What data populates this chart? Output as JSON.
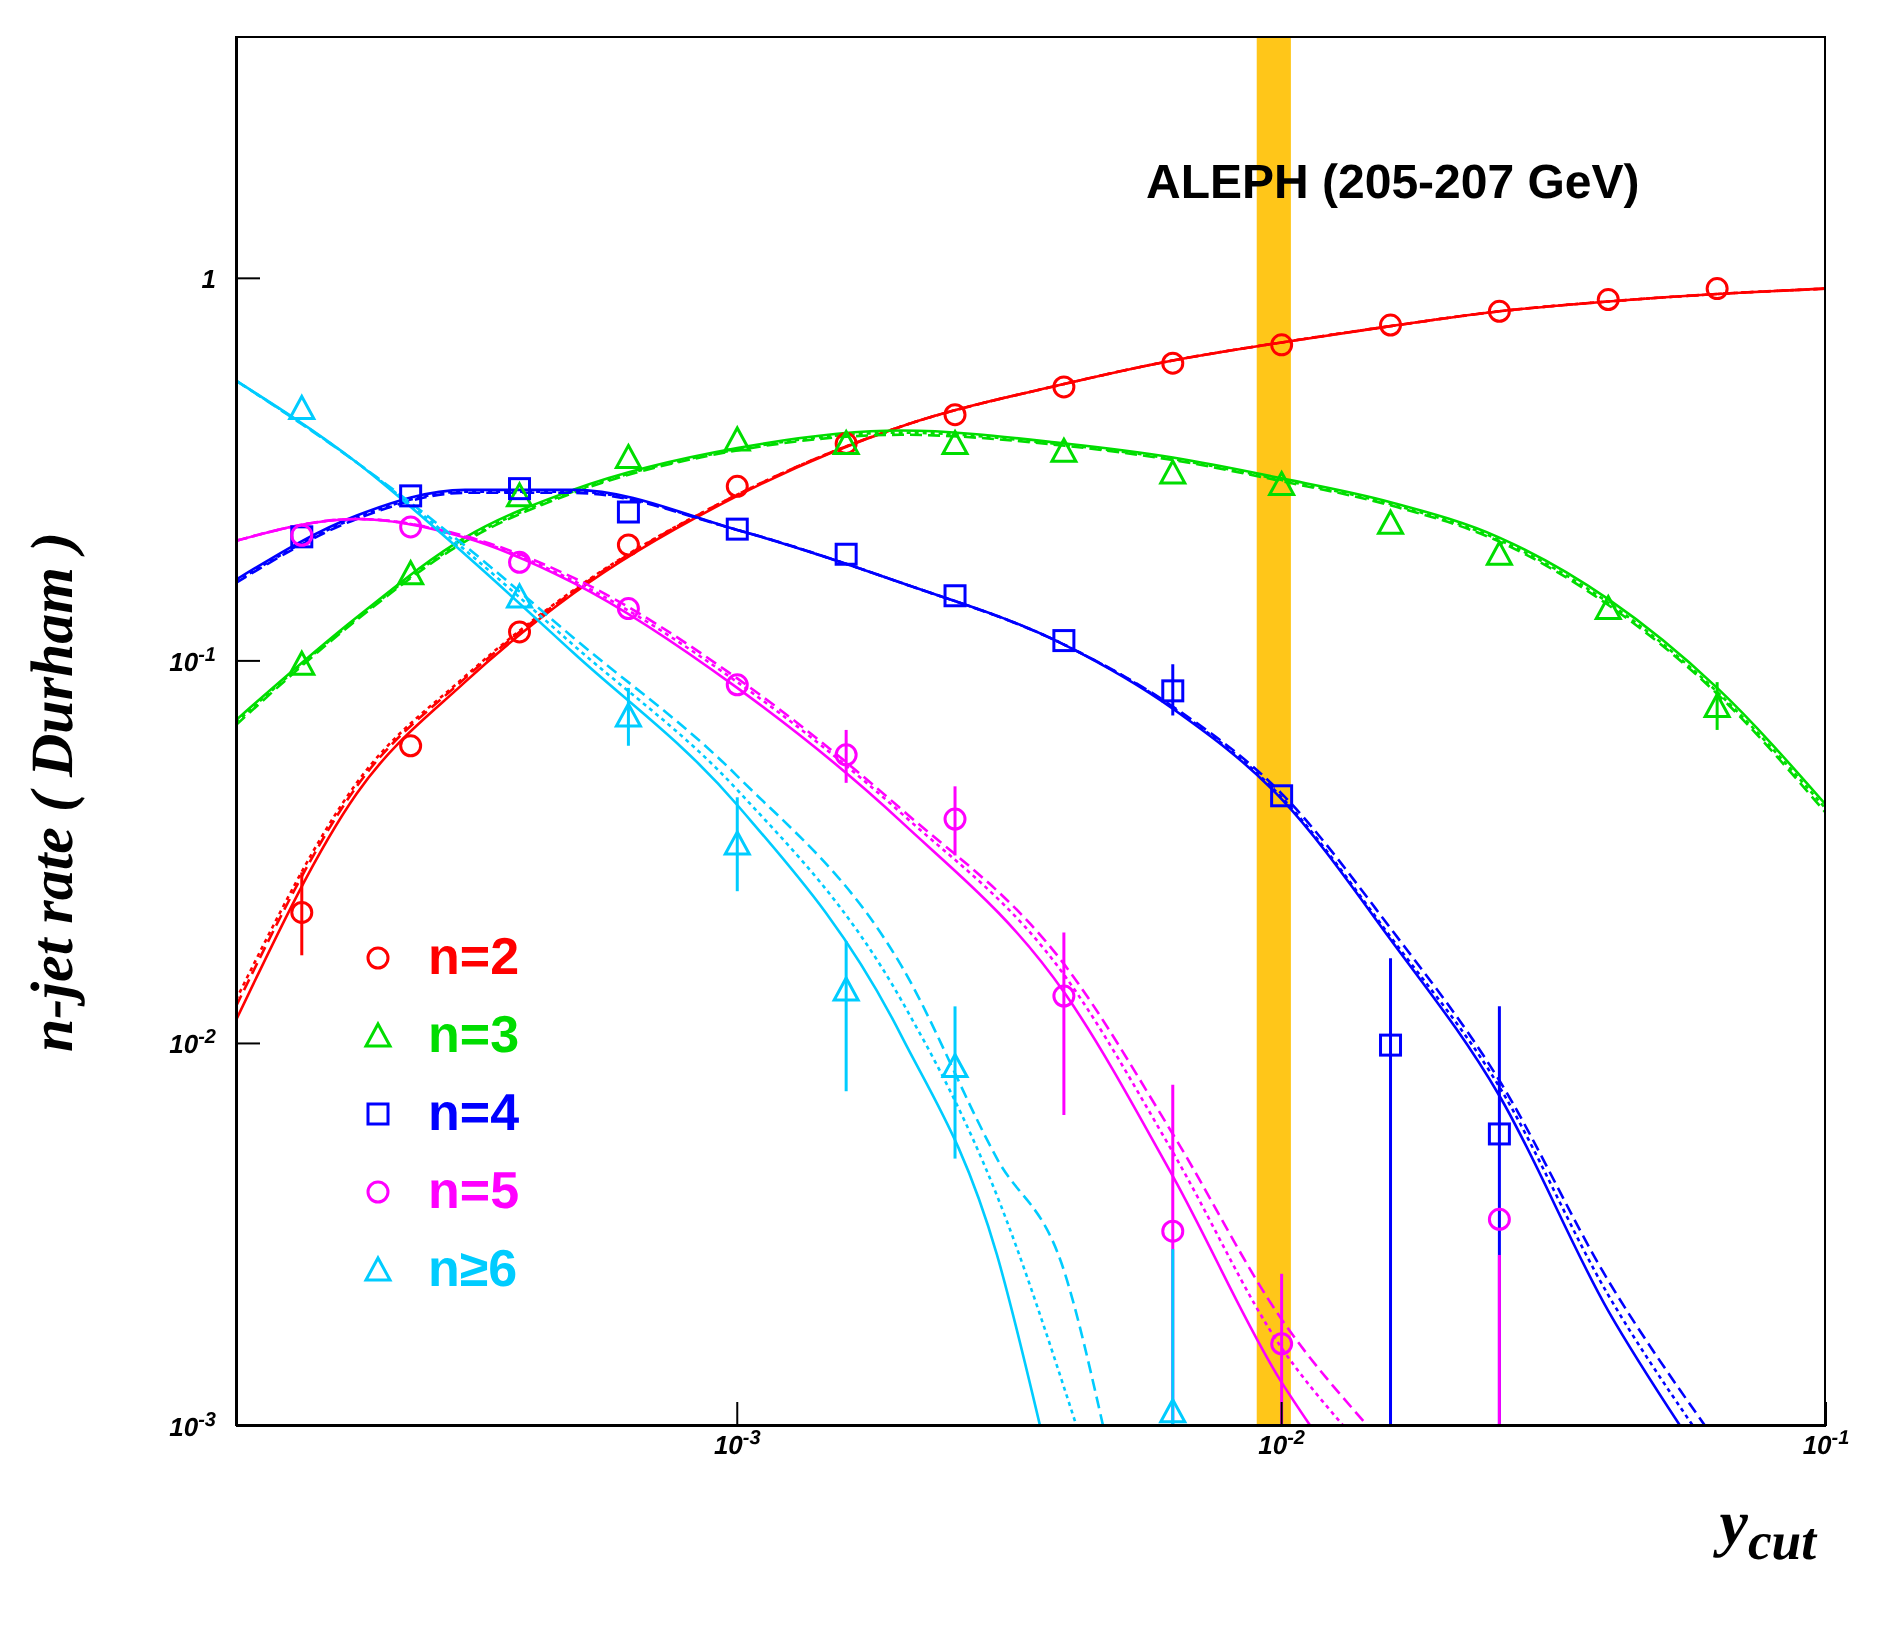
{
  "chart_data": {
    "type": "scatter",
    "xlabel": "y$_{cut}$",
    "ylabel": "n-jet rate ( Durham )",
    "annotations": [
      "ALEPH (205-207 GeV)"
    ],
    "log": "xy",
    "legend": "bottom left",
    "xlim": [
      0.00012,
      0.1
    ],
    "ylim": [
      0.001,
      4.3
    ],
    "xticks": [
      {
        "value": 0.001,
        "label": "10$^{-3}$"
      },
      {
        "value": 0.01,
        "label": "10$^{-2}$"
      },
      {
        "value": 0.1,
        "label": "10$^{-1}$"
      }
    ],
    "yticks": [
      {
        "value": 0.001,
        "label": "10$^{-3}$"
      },
      {
        "value": 0.01,
        "label": "10$^{-2}$"
      },
      {
        "value": 0.1,
        "label": "10$^{-1}$"
      },
      1
    ],
    "bands": [
      {
        "axis": "x",
        "from": 0.009,
        "to": 0.0104,
        "color": "#ffc000"
      }
    ],
    "x": [
      0.0001585,
      0.0002512,
      0.0003981,
      0.000631,
      0.001,
      0.001585,
      0.002512,
      0.003981,
      0.00631,
      0.01,
      0.01585,
      0.02512,
      0.03981,
      0.0631
    ],
    "series": [
      {
        "name": "n=2",
        "marker": "circle",
        "color": "#ff0000",
        "values": [
          0.022,
          0.06,
          0.119,
          0.201,
          0.286,
          0.37,
          0.44,
          0.52,
          0.6,
          0.67,
          0.755,
          0.82,
          0.88,
          0.94
        ],
        "errors": [
          [
            0.017,
            0.028
          ],
          null,
          null,
          null,
          null,
          null,
          null,
          null,
          null,
          null,
          null,
          null,
          null,
          null
        ]
      },
      {
        "name": "n=3",
        "marker": "triangle",
        "color": "#00dd00",
        "values": [
          0.098,
          0.169,
          0.27,
          0.34,
          0.378,
          0.37,
          0.37,
          0.353,
          0.31,
          0.289,
          0.229,
          0.19,
          0.137,
          0.076
        ],
        "errors": [
          null,
          null,
          null,
          null,
          null,
          null,
          null,
          null,
          null,
          null,
          null,
          null,
          null,
          [
            0.066,
            0.088
          ]
        ]
      },
      {
        "name": "n=4",
        "marker": "square",
        "color": "#0000ff",
        "values": [
          0.211,
          0.27,
          0.282,
          0.245,
          0.221,
          0.19,
          0.148,
          0.113,
          0.0835,
          0.0444,
          0.0099,
          0.0058,
          null,
          null
        ],
        "errors": [
          null,
          null,
          null,
          null,
          null,
          null,
          null,
          null,
          [
            0.072,
            0.098
          ],
          null,
          [
            0.001,
            0.0167
          ],
          [
            0.001,
            0.0125
          ],
          null,
          null
        ]
      },
      {
        "name": "n=5",
        "marker": "circle",
        "color": "#ff00ff",
        "values": [
          0.213,
          0.224,
          0.181,
          0.137,
          0.0866,
          0.0568,
          0.0386,
          0.0133,
          0.00323,
          0.00164,
          null,
          0.00347,
          null,
          null
        ],
        "errors": [
          null,
          null,
          null,
          null,
          null,
          [
            0.048,
            0.066
          ],
          [
            0.031,
            0.047
          ],
          [
            0.0065,
            0.0195
          ],
          [
            0.001,
            0.0078
          ],
          [
            0.001,
            0.0025
          ],
          null,
          [
            0.001,
            0.0028
          ],
          null,
          null
        ]
      },
      {
        "name": "n≥6",
        "marker": "triangle",
        "color": "#00ccff",
        "values": [
          0.457,
          null,
          0.147,
          0.0718,
          0.0332,
          0.0138,
          0.0087,
          null,
          0.00109,
          null,
          null,
          null,
          null,
          null
        ],
        "errors": [
          null,
          null,
          null,
          [
            0.06,
            0.085
          ],
          [
            0.025,
            0.044
          ],
          [
            0.0075,
            0.0185
          ],
          [
            0.005,
            0.0125
          ],
          null,
          [
            0.001,
            0.0029
          ],
          null,
          null,
          null,
          null,
          null
        ]
      },
      {
        "type": "line",
        "line_style": "solid",
        "color": "#ff0000",
        "x": [
          0.00012,
          0.0002,
          0.000316,
          0.0005,
          0.001,
          0.002,
          0.004,
          0.00631,
          0.01,
          0.01585,
          0.02512,
          0.03981,
          0.0631,
          0.1
        ],
        "values": [
          0.0115,
          0.045,
          0.088,
          0.15,
          0.27,
          0.41,
          0.53,
          0.61,
          0.68,
          0.75,
          0.82,
          0.87,
          0.91,
          0.94
        ]
      },
      {
        "type": "line",
        "line_style": "dashed",
        "color": "#ff0000",
        "x": [
          0.00012,
          0.0002,
          0.000316,
          0.0005,
          0.001,
          0.002,
          0.004,
          0.00631,
          0.01,
          0.01585,
          0.02512,
          0.03981,
          0.0631,
          0.1
        ],
        "values": [
          0.0125,
          0.047,
          0.09,
          0.152,
          0.272,
          0.41,
          0.53,
          0.61,
          0.68,
          0.75,
          0.82,
          0.87,
          0.91,
          0.94
        ]
      },
      {
        "type": "line",
        "line_style": "dotted",
        "color": "#ff0000",
        "x": [
          0.00012,
          0.0002,
          0.000316,
          0.0005,
          0.001,
          0.002,
          0.004,
          0.00631,
          0.01,
          0.01585,
          0.02512,
          0.03981,
          0.0631,
          0.1
        ],
        "values": [
          0.013,
          0.048,
          0.091,
          0.153,
          0.272,
          0.41,
          0.53,
          0.61,
          0.68,
          0.75,
          0.82,
          0.87,
          0.91,
          0.94
        ]
      },
      {
        "type": "line",
        "line_style": "solid",
        "color": "#00dd00",
        "x": [
          0.00012,
          0.0002,
          0.000316,
          0.0005,
          0.001,
          0.002,
          0.004,
          0.00631,
          0.01,
          0.01585,
          0.02512,
          0.03981,
          0.0631,
          0.1
        ],
        "values": [
          0.07,
          0.13,
          0.21,
          0.28,
          0.36,
          0.4,
          0.37,
          0.34,
          0.3,
          0.26,
          0.21,
          0.145,
          0.085,
          0.042
        ]
      },
      {
        "type": "line",
        "line_style": "dashed",
        "color": "#00dd00",
        "x": [
          0.00012,
          0.0002,
          0.000316,
          0.0005,
          0.001,
          0.002,
          0.004,
          0.00631,
          0.01,
          0.01585,
          0.02512,
          0.03981,
          0.0631,
          0.1
        ],
        "values": [
          0.068,
          0.128,
          0.205,
          0.275,
          0.355,
          0.39,
          0.365,
          0.335,
          0.295,
          0.255,
          0.205,
          0.14,
          0.082,
          0.04
        ]
      },
      {
        "type": "line",
        "line_style": "dotted",
        "color": "#00dd00",
        "x": [
          0.00012,
          0.0002,
          0.000316,
          0.0005,
          0.001,
          0.002,
          0.004,
          0.00631,
          0.01,
          0.01585,
          0.02512,
          0.03981,
          0.0631,
          0.1
        ],
        "values": [
          0.069,
          0.129,
          0.207,
          0.277,
          0.357,
          0.395,
          0.367,
          0.337,
          0.297,
          0.257,
          0.207,
          0.142,
          0.083,
          0.041
        ]
      },
      {
        "type": "line",
        "line_style": "solid",
        "color": "#0000ff",
        "x": [
          0.00012,
          0.0002,
          0.000316,
          0.0005,
          0.001,
          0.002,
          0.004,
          0.00631,
          0.01,
          0.01585,
          0.02512,
          0.03981,
          0.054
        ],
        "values": [
          0.163,
          0.24,
          0.28,
          0.28,
          0.22,
          0.16,
          0.11,
          0.075,
          0.0435,
          0.0187,
          0.0073,
          0.002,
          0.001
        ]
      },
      {
        "type": "line",
        "line_style": "dashed",
        "color": "#0000ff",
        "x": [
          0.00012,
          0.0002,
          0.000316,
          0.0005,
          0.001,
          0.002,
          0.004,
          0.00631,
          0.01,
          0.01585,
          0.02512,
          0.03981,
          0.06
        ],
        "values": [
          0.16,
          0.235,
          0.275,
          0.275,
          0.22,
          0.16,
          0.11,
          0.076,
          0.045,
          0.02,
          0.008,
          0.0024,
          0.001
        ]
      },
      {
        "type": "line",
        "line_style": "dotted",
        "color": "#0000ff",
        "x": [
          0.00012,
          0.0002,
          0.000316,
          0.0005,
          0.001,
          0.002,
          0.004,
          0.00631,
          0.01,
          0.01585,
          0.02512,
          0.03981,
          0.057
        ],
        "values": [
          0.161,
          0.237,
          0.277,
          0.277,
          0.22,
          0.16,
          0.11,
          0.0755,
          0.044,
          0.019,
          0.0077,
          0.0022,
          0.001
        ]
      },
      {
        "type": "line",
        "line_style": "solid",
        "color": "#ff00ff",
        "x": [
          0.00012,
          0.0002,
          0.000316,
          0.0005,
          0.001,
          0.002,
          0.004,
          0.00631,
          0.01,
          0.0113
        ],
        "values": [
          0.206,
          0.235,
          0.21,
          0.16,
          0.085,
          0.038,
          0.0135,
          0.0045,
          0.0013,
          0.001
        ]
      },
      {
        "type": "line",
        "line_style": "dashed",
        "color": "#ff00ff",
        "x": [
          0.00012,
          0.0002,
          0.000316,
          0.0005,
          0.001,
          0.002,
          0.004,
          0.00631,
          0.01,
          0.0144
        ],
        "values": [
          0.206,
          0.235,
          0.212,
          0.165,
          0.09,
          0.041,
          0.016,
          0.0058,
          0.0019,
          0.001
        ]
      },
      {
        "type": "line",
        "line_style": "dotted",
        "color": "#ff00ff",
        "x": [
          0.00012,
          0.0002,
          0.000316,
          0.0005,
          0.001,
          0.002,
          0.004,
          0.00631,
          0.01,
          0.013
        ],
        "values": [
          0.206,
          0.235,
          0.211,
          0.162,
          0.088,
          0.04,
          0.015,
          0.0052,
          0.0016,
          0.001
        ]
      },
      {
        "type": "line",
        "line_style": "solid",
        "color": "#00ccff",
        "x": [
          0.00012,
          0.0002,
          0.000316,
          0.0005,
          0.001,
          0.002,
          0.003,
          0.0036
        ],
        "values": [
          0.54,
          0.33,
          0.19,
          0.105,
          0.042,
          0.0105,
          0.0028,
          0.001
        ]
      },
      {
        "type": "line",
        "line_style": "dashed",
        "color": "#00ccff",
        "x": [
          0.00012,
          0.0002,
          0.000316,
          0.0005,
          0.001,
          0.002,
          0.003,
          0.004,
          0.0047
        ],
        "values": [
          0.54,
          0.33,
          0.2,
          0.115,
          0.05,
          0.016,
          0.005,
          0.0025,
          0.001
        ]
      },
      {
        "type": "line",
        "line_style": "dotted",
        "color": "#00ccff",
        "x": [
          0.00012,
          0.0002,
          0.000316,
          0.0005,
          0.001,
          0.002,
          0.003,
          0.0042
        ],
        "values": [
          0.54,
          0.33,
          0.195,
          0.11,
          0.046,
          0.013,
          0.004,
          0.001
        ]
      }
    ]
  }
}
